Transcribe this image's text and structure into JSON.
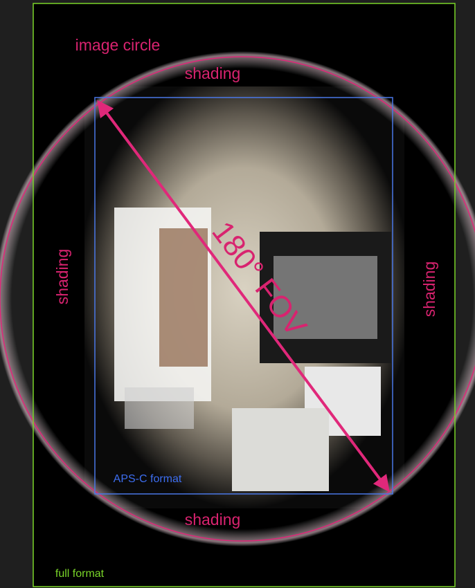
{
  "labels": {
    "image_circle": "image circle",
    "shading_top": "shading",
    "shading_left": "shading",
    "shading_right": "shading",
    "shading_bottom": "shading",
    "fov": "180° FOV",
    "apsc": "APS-C format",
    "full_format": "full format"
  }
}
